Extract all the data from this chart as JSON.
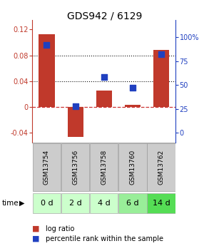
{
  "title": "GDS942 / 6129",
  "samples": [
    "GSM13754",
    "GSM13756",
    "GSM13758",
    "GSM13760",
    "GSM13762"
  ],
  "time_labels": [
    "0 d",
    "2 d",
    "4 d",
    "6 d",
    "14 d"
  ],
  "log_ratios": [
    0.113,
    -0.046,
    0.025,
    0.004,
    0.088
  ],
  "percentile_ranks": [
    92,
    28,
    58,
    47,
    82
  ],
  "ylim_left": [
    -0.055,
    0.135
  ],
  "ylim_right": [
    -10.3125,
    118.125
  ],
  "yticks_left": [
    -0.04,
    0,
    0.04,
    0.08,
    0.12
  ],
  "yticks_right": [
    0,
    25,
    50,
    75,
    100
  ],
  "bar_color": "#C0392B",
  "dot_color": "#2040C0",
  "hline_color": "#CC3333",
  "dotted_line_color": "#111111",
  "bg_color": "#FFFFFF",
  "plot_bg": "#FFFFFF",
  "sample_bg": "#CCCCCC",
  "time_bg_colors": [
    "#CCFFCC",
    "#CCFFCC",
    "#CCFFCC",
    "#99EE99",
    "#55DD55"
  ],
  "bar_width": 0.55,
  "dot_size": 35,
  "title_fontsize": 10,
  "tick_fontsize": 7,
  "sample_fontsize": 6.5,
  "time_fontsize": 8
}
